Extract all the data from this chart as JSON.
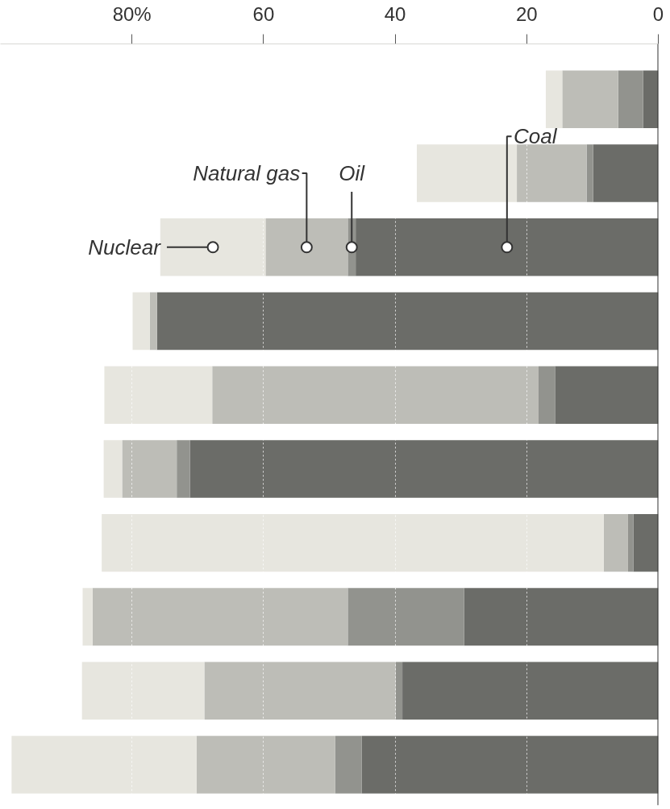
{
  "chart_data": {
    "type": "bar",
    "orientation": "horizontal",
    "stacked": true,
    "categories": [
      null,
      null,
      null,
      null,
      null,
      null,
      null,
      null,
      null,
      null
    ],
    "series": [
      {
        "name": "Coal",
        "color": "#6b6c68",
        "values": [
          2.3,
          9.9,
          46.0,
          76.2,
          15.7,
          71.2,
          3.8,
          29.5,
          38.9,
          45.1
        ]
      },
      {
        "name": "Oil",
        "color": "#92938e",
        "values": [
          3.8,
          1.0,
          1.2,
          0,
          2.5,
          2.0,
          0.8,
          17.7,
          1.0,
          4.0
        ]
      },
      {
        "name": "Natural gas",
        "color": "#bdbdb7",
        "values": [
          8.5,
          10.6,
          12.5,
          1.1,
          49.6,
          8.3,
          3.7,
          38.8,
          29.1,
          21.1
        ]
      },
      {
        "name": "Nuclear",
        "color": "#e7e6df",
        "values": [
          2.5,
          15.2,
          16.0,
          2.6,
          16.4,
          2.8,
          76.3,
          1.5,
          18.6,
          28.1
        ]
      }
    ],
    "xlim": [
      100,
      0
    ],
    "xticks": [
      {
        "value": 80,
        "label": "80%"
      },
      60,
      40,
      20,
      0
    ],
    "grid": "x"
  }
}
